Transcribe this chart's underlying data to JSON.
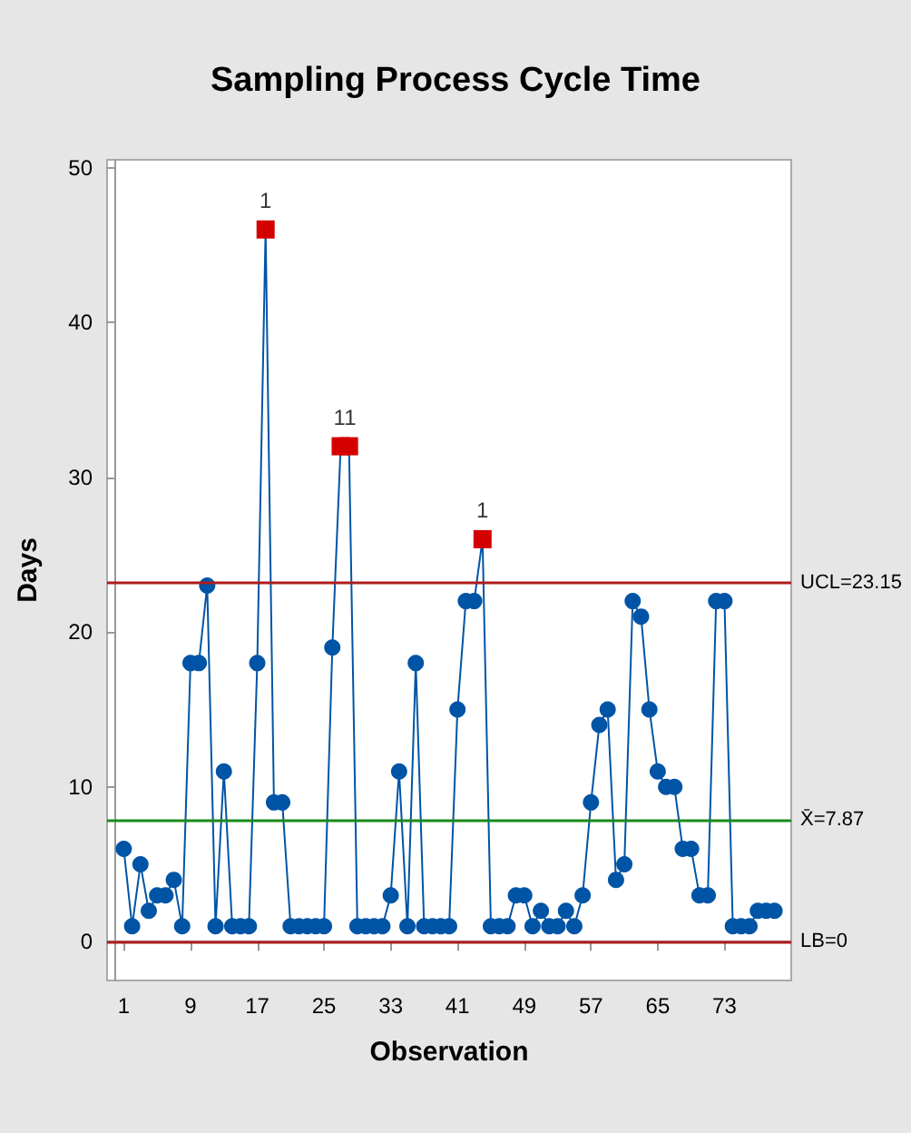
{
  "chart_data": {
    "type": "line",
    "title": "Sampling Process Cycle Time",
    "xlabel": "Observation",
    "ylabel": "Days",
    "x": [
      1,
      2,
      3,
      4,
      5,
      6,
      7,
      8,
      9,
      10,
      11,
      12,
      13,
      14,
      15,
      16,
      17,
      18,
      19,
      20,
      21,
      22,
      23,
      24,
      25,
      26,
      27,
      28,
      29,
      30,
      31,
      32,
      33,
      34,
      35,
      36,
      37,
      38,
      39,
      40,
      41,
      42,
      43,
      44,
      45,
      46,
      47,
      48,
      49,
      50,
      51,
      52,
      53,
      54,
      55,
      56,
      57,
      58,
      59,
      60,
      61,
      62,
      63,
      64,
      65,
      66,
      67,
      68,
      69,
      70,
      71,
      72,
      73,
      74,
      75,
      76,
      77,
      78,
      79
    ],
    "series": [
      {
        "color": "#0054a6",
        "values": [
          6,
          1,
          5,
          2,
          3,
          3,
          4,
          1,
          18,
          18,
          23,
          1,
          11,
          1,
          1,
          1,
          18,
          46,
          9,
          9,
          1,
          1,
          1,
          1,
          1,
          19,
          32,
          32,
          1,
          1,
          1,
          1,
          3,
          11,
          1,
          18,
          1,
          1,
          1,
          1,
          15,
          22,
          22,
          26,
          1,
          1,
          1,
          3,
          3,
          1,
          2,
          1,
          1,
          2,
          1,
          3,
          9,
          14,
          15,
          4,
          5,
          22,
          21,
          15,
          11,
          10,
          10,
          6,
          6,
          3,
          3,
          22,
          22,
          1,
          1,
          1,
          2,
          2,
          2
        ],
        "colors": [
          "#0054a6",
          "#0054a6",
          "#0054a6",
          "#0054a6",
          "#0054a6",
          "#0054a6",
          "#0054a6",
          "#0054a6",
          "#0054a6",
          "#0054a6",
          "#0054a6",
          "#0054a6",
          "#0054a6",
          "#0054a6",
          "#0054a6",
          "#0054a6",
          "#0054a6",
          "#d40000",
          "#0054a6",
          "#0054a6",
          "#0054a6",
          "#0054a6",
          "#0054a6",
          "#0054a6",
          "#0054a6",
          "#0054a6",
          "#d40000",
          "#d40000",
          "#0054a6",
          "#0054a6",
          "#0054a6",
          "#0054a6",
          "#0054a6",
          "#0054a6",
          "#0054a6",
          "#0054a6",
          "#0054a6",
          "#0054a6",
          "#0054a6",
          "#0054a6",
          "#0054a6",
          "#0054a6",
          "#0054a6",
          "#d40000",
          "#0054a6",
          "#0054a6",
          "#0054a6",
          "#0054a6",
          "#0054a6",
          "#0054a6",
          "#0054a6",
          "#0054a6",
          "#0054a6",
          "#0054a6",
          "#0054a6",
          "#0054a6",
          "#0054a6",
          "#0054a6",
          "#0054a6",
          "#0054a6",
          "#0054a6",
          "#0054a6",
          "#0054a6",
          "#0054a6",
          "#0054a6",
          "#0054a6",
          "#0054a6",
          "#0054a6",
          "#0054a6",
          "#0054a6",
          "#0054a6",
          "#0054a6",
          "#0054a6",
          "#0054a6",
          "#0054a6",
          "#0054a6",
          "#0054a6",
          "#0054a6",
          "#0054a6"
        ]
      }
    ],
    "xlim": [
      -1,
      81
    ],
    "xticks": [
      1,
      9,
      17,
      25,
      33,
      41,
      49,
      57,
      65,
      73
    ],
    "ylim": [
      -2.5,
      50.5
    ],
    "yticks": [
      0,
      10,
      20,
      30,
      40,
      50
    ],
    "ref_lines": [
      {
        "axis": "y",
        "value": 23.15,
        "label": "UCL=23.15",
        "color": "#b01c1c"
      },
      {
        "axis": "y",
        "value": 7.87,
        "label": "X̄=7.87",
        "color": "#1a8a1a"
      },
      {
        "axis": "y",
        "value": 0,
        "label": "LB=0",
        "color": "#b01c1c"
      }
    ],
    "annotations": [
      {
        "text": "1",
        "x": 18,
        "y": 46
      },
      {
        "text": "11",
        "x": 27.5,
        "y": 32
      },
      {
        "text": "1",
        "x": 44,
        "y": 26
      }
    ],
    "marker": "circle",
    "line_style": "solid",
    "grid": false
  }
}
